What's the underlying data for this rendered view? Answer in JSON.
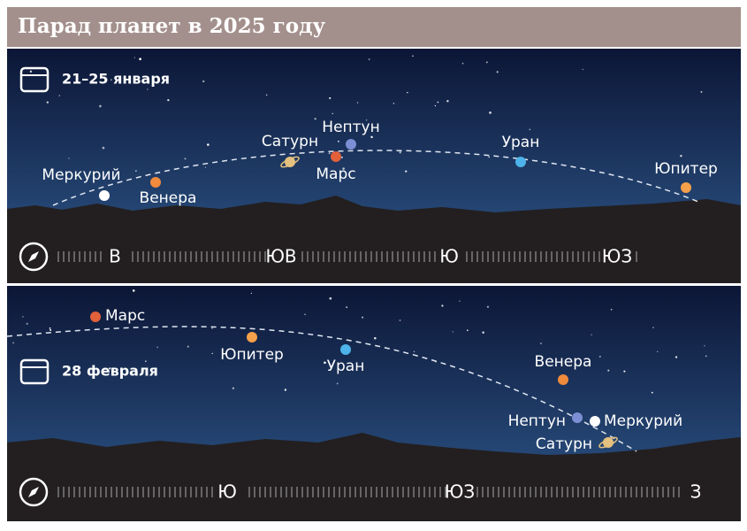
{
  "header": {
    "title": "Парад планет в 2025 году"
  },
  "panels": [
    {
      "date": "21–25 января",
      "planets": [
        "Меркурий",
        "Венера",
        "Сатурн",
        "Нептун",
        "Марс",
        "Уран",
        "Юпитер"
      ],
      "directions": [
        "В",
        "ЮВ",
        "Ю",
        "ЮЗ"
      ]
    },
    {
      "date": "28 февраля",
      "planets": [
        "Марс",
        "Юпитер",
        "Уран",
        "Венера",
        "Нептун",
        "Меркурий",
        "Сатурн"
      ],
      "directions": [
        "Ю",
        "ЮЗ",
        "З"
      ]
    }
  ]
}
